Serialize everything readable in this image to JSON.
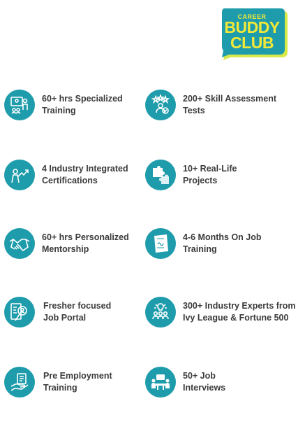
{
  "logo": {
    "line1": "CAREER",
    "line2": "BUDDY",
    "line3": "CLUB",
    "colors": {
      "background": "#1e9cab",
      "text": "#f2e838",
      "shadow": "#d9e94a"
    }
  },
  "accent_color": "#1e9cab",
  "features": [
    {
      "icon": "trainer-board-icon",
      "line1": "60+ hrs Specialized",
      "line2": "Training"
    },
    {
      "icon": "skill-assessment-icon",
      "line1": "200+ Skill Assessment",
      "line2": "Tests"
    },
    {
      "icon": "growth-person-icon",
      "line1": "4 Industry Integrated",
      "line2": "Certifications"
    },
    {
      "icon": "puzzle-icon",
      "line1": "10+ Real-Life",
      "line2": "Projects"
    },
    {
      "icon": "handshake-icon",
      "line1": "60+ hrs Personalized",
      "line2": "Mentorship"
    },
    {
      "icon": "document-stamp-icon",
      "line1": "4-6 Months On Job",
      "line2": "Training"
    },
    {
      "icon": "job-portal-icon",
      "line1": "Fresher focused",
      "line2": "Job Portal"
    },
    {
      "icon": "experts-group-icon",
      "line1": "300+ Industry Experts from",
      "line2": "Ivy League & Fortune 500"
    },
    {
      "icon": "hand-document-icon",
      "line1": "Pre Employment",
      "line2": "Training"
    },
    {
      "icon": "interview-icon",
      "line1": "50+ Job",
      "line2": "Interviews"
    }
  ]
}
